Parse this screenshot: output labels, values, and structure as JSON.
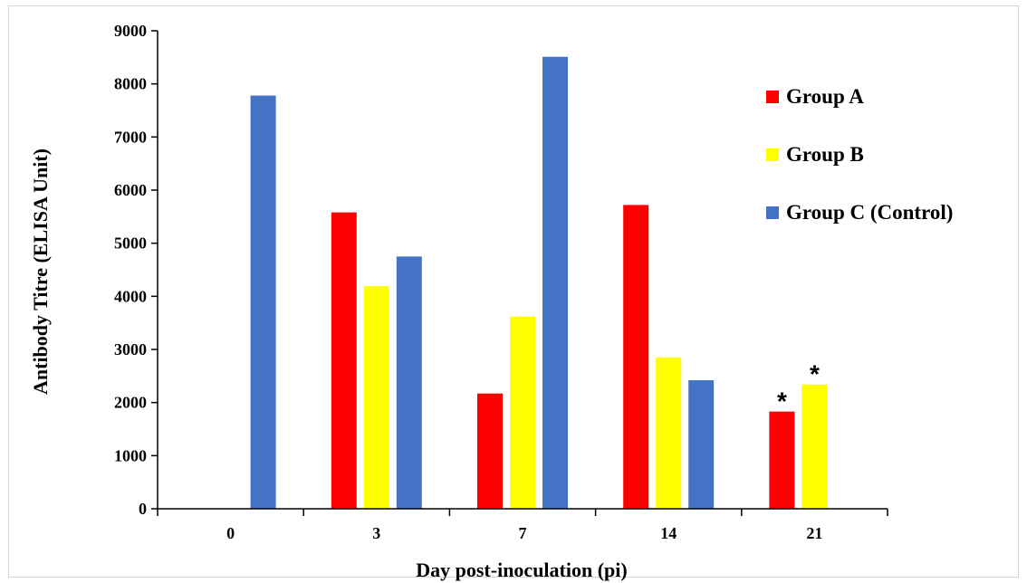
{
  "chart_data": {
    "type": "bar",
    "xlabel": "Day post-inoculation (pi)",
    "ylabel": "Antibody Titre (ELISA Unit)",
    "ylim": [
      0,
      9000
    ],
    "yticks": [
      "0",
      "1000",
      "2000",
      "3000",
      "4000",
      "5000",
      "6000",
      "7000",
      "8000",
      "9000"
    ],
    "categories": [
      "0",
      "3",
      "7",
      "14",
      "21"
    ],
    "series": [
      {
        "name": "Group A",
        "color": "#ff0000",
        "values": [
          null,
          5580,
          2170,
          5720,
          1830
        ]
      },
      {
        "name": "Group B",
        "color": "#ffff00",
        "values": [
          null,
          4190,
          3620,
          2850,
          2340
        ]
      },
      {
        "name": "Group C (Control)",
        "color": "#4472c4",
        "values": [
          7780,
          4750,
          8510,
          2420,
          null
        ]
      }
    ],
    "annotations": [
      {
        "text": "*",
        "category": "21",
        "series": "Group A"
      },
      {
        "text": "*",
        "category": "21",
        "series": "Group B"
      }
    ],
    "grid": false,
    "legend_position": "top-right"
  }
}
